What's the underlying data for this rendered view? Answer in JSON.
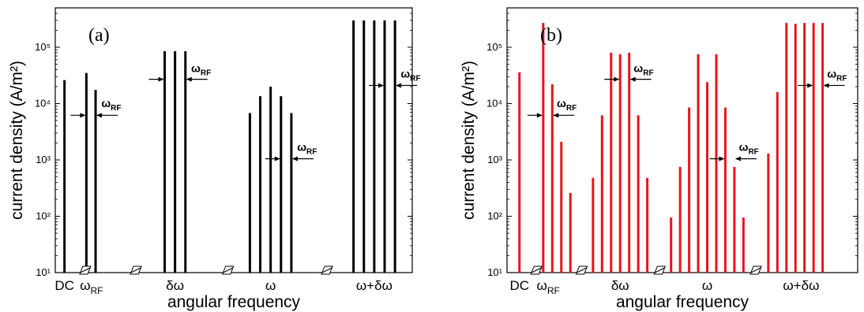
{
  "chart_data": [
    {
      "type": "bar",
      "panel_label": "(a)",
      "xlabel": "angular frequency",
      "ylabel": "current density (A/m²)",
      "yscale": "log",
      "ylim": [
        10,
        500000
      ],
      "yticks": [
        "10¹",
        "10²",
        "10³",
        "10⁴",
        "10⁵"
      ],
      "color": "#000000",
      "categories": [
        "DC",
        "ωRF",
        "δω",
        "ω",
        "ω+δω"
      ],
      "bars": [
        {
          "x": 0.4,
          "value": 26000
        },
        {
          "x": 1.35,
          "value": 35000
        },
        {
          "x": 1.75,
          "value": 17500
        },
        {
          "x": 4.75,
          "value": 85000
        },
        {
          "x": 5.2,
          "value": 85000
        },
        {
          "x": 5.65,
          "value": 85000
        },
        {
          "x": 8.45,
          "value": 6800
        },
        {
          "x": 8.9,
          "value": 13500
        },
        {
          "x": 9.35,
          "value": 20000
        },
        {
          "x": 9.8,
          "value": 13500
        },
        {
          "x": 10.25,
          "value": 6800
        },
        {
          "x": 12.95,
          "value": 300000
        },
        {
          "x": 13.4,
          "value": 300000
        },
        {
          "x": 13.85,
          "value": 300000
        },
        {
          "x": 14.3,
          "value": 300000
        },
        {
          "x": 14.75,
          "value": 300000
        }
      ],
      "category_x": [
        0.4,
        1.55,
        5.2,
        9.35,
        13.85
      ],
      "breaks_x": [
        1.3,
        3.5,
        7.5,
        11.8
      ],
      "annotations": [
        {
          "text": "ωRF",
          "x_left": 1.35,
          "x_right": 1.75,
          "y": 6200,
          "label_dx": 0.25,
          "label_y": 12000
        },
        {
          "text": "ωRF",
          "x_left": 4.75,
          "x_right": 5.65,
          "y": 27000,
          "label_dx": 0.25,
          "label_y": 50000
        },
        {
          "text": "ωRF",
          "x_left": 9.8,
          "x_right": 10.25,
          "y": 1050,
          "label_dx": 0.25,
          "label_y": 2000
        },
        {
          "text": "ωRF",
          "x_left": 14.3,
          "x_right": 14.75,
          "y": 21000,
          "label_dx": 0.25,
          "label_y": 40000
        }
      ]
    },
    {
      "type": "bar",
      "panel_label": "(b)",
      "xlabel": "angular frequency",
      "ylabel": "current density (A/m²)",
      "yscale": "log",
      "ylim": [
        10,
        500000
      ],
      "yticks": [
        "10¹",
        "10²",
        "10³",
        "10⁴",
        "10⁵"
      ],
      "color": "#e8141b",
      "categories": [
        "DC",
        "ωRF",
        "δω",
        "ω",
        "ω+δω"
      ],
      "bars": [
        {
          "x": 0.55,
          "value": 36000
        },
        {
          "x": 1.6,
          "value": 270000
        },
        {
          "x": 2.0,
          "value": 22000
        },
        {
          "x": 2.4,
          "value": 2100
        },
        {
          "x": 2.8,
          "value": 260
        },
        {
          "x": 3.8,
          "value": 480
        },
        {
          "x": 4.2,
          "value": 6200
        },
        {
          "x": 4.6,
          "value": 80000
        },
        {
          "x": 5.0,
          "value": 75000
        },
        {
          "x": 5.4,
          "value": 80000
        },
        {
          "x": 5.8,
          "value": 6200
        },
        {
          "x": 6.2,
          "value": 480
        },
        {
          "x": 7.25,
          "value": 95
        },
        {
          "x": 7.65,
          "value": 750
        },
        {
          "x": 8.05,
          "value": 8500
        },
        {
          "x": 8.45,
          "value": 75000
        },
        {
          "x": 8.85,
          "value": 24000
        },
        {
          "x": 9.25,
          "value": 75000
        },
        {
          "x": 9.65,
          "value": 8500
        },
        {
          "x": 10.05,
          "value": 750
        },
        {
          "x": 10.45,
          "value": 95
        },
        {
          "x": 11.55,
          "value": 1300
        },
        {
          "x": 11.95,
          "value": 16000
        },
        {
          "x": 12.35,
          "value": 270000
        },
        {
          "x": 12.75,
          "value": 260000
        },
        {
          "x": 13.15,
          "value": 270000
        },
        {
          "x": 13.55,
          "value": 270000
        },
        {
          "x": 13.95,
          "value": 270000
        }
      ],
      "category_x": [
        0.55,
        1.8,
        5.0,
        8.85,
        13.0
      ],
      "breaks_x": [
        1.3,
        3.3,
        6.75,
        11.0
      ],
      "annotations": [
        {
          "text": "ωRF",
          "x_left": 1.6,
          "x_right": 2.0,
          "y": 6200,
          "label_dx": 0.2,
          "label_y": 12000
        },
        {
          "text": "ωRF",
          "x_left": 5.0,
          "x_right": 5.4,
          "y": 27000,
          "label_dx": 0.2,
          "label_y": 50000
        },
        {
          "text": "ωRF",
          "x_left": 9.65,
          "x_right": 10.05,
          "y": 1050,
          "label_dx": 0.2,
          "label_y": 2000
        },
        {
          "text": "ωRF",
          "x_left": 13.55,
          "x_right": 13.95,
          "y": 21000,
          "label_dx": 0.2,
          "label_y": 40000
        }
      ]
    }
  ]
}
